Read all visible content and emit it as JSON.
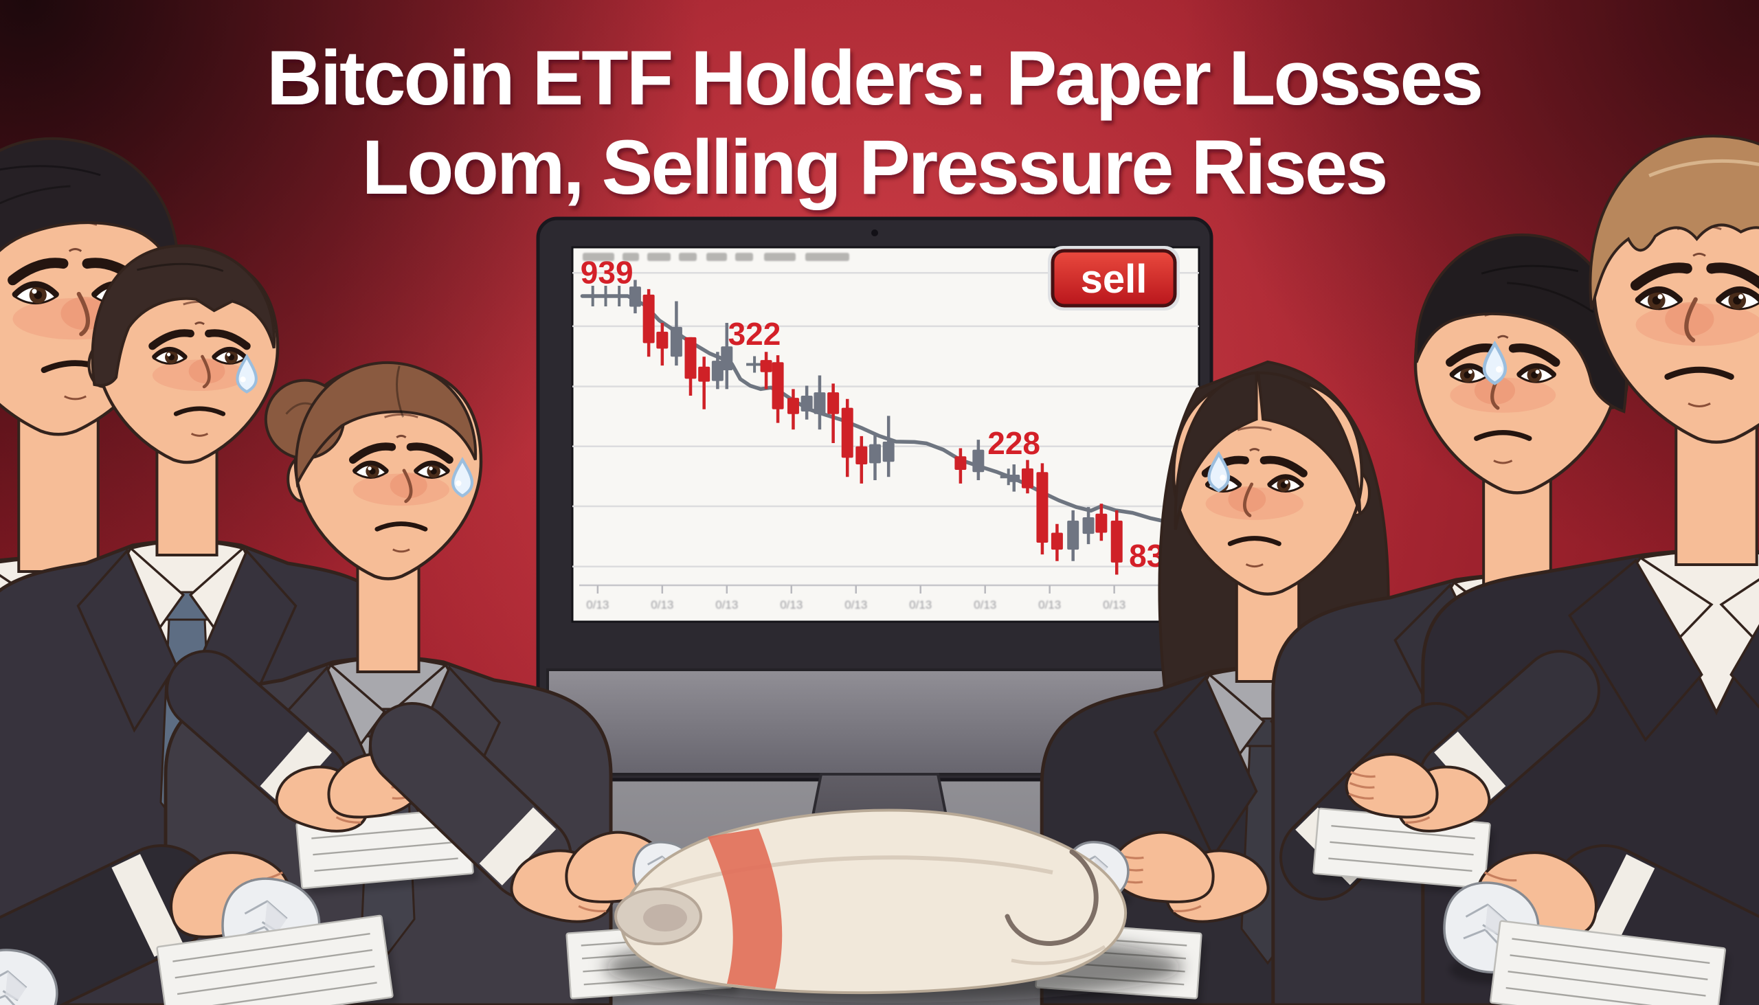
{
  "title": {
    "line1": "Bitcoin ETF Holders: Paper Losses",
    "line2": "Loom, Selling Pressure Rises"
  },
  "monitor": {
    "sell_button_label": "sell",
    "toolbar_item_count": 8
  },
  "chart_data": {
    "type": "candlestick",
    "title": "Declining price chart on monitor",
    "trend": "down",
    "legend": "none",
    "grid": "on",
    "price_labels": [
      {
        "text": "939",
        "x": 0.002,
        "y": 0.921
      },
      {
        "text": "322",
        "x": 0.242,
        "y": 0.753
      },
      {
        "text": "228",
        "x": 0.664,
        "y": 0.456
      },
      {
        "text": "836",
        "x": 0.894,
        "y": 0.15
      }
    ],
    "gridlines_v": [
      0.949,
      0.804,
      0.64,
      0.477,
      0.314,
      0.15
    ],
    "start_line": {
      "from": 0.005,
      "to": 0.079,
      "v": 0.886,
      "cross_ticks": [
        0.022,
        0.043,
        0.065
      ]
    },
    "extra_cross_ticks": [
      {
        "x": 0.285,
        "v": 0.7
      },
      {
        "x": 0.698,
        "v": 0.394
      }
    ],
    "candles": [
      {
        "x": 0.091,
        "c": "g",
        "wt": 0.93,
        "bt": 0.912,
        "bb": 0.857,
        "wb": 0.839
      },
      {
        "x": 0.113,
        "c": "r",
        "wt": 0.905,
        "bt": 0.89,
        "bb": 0.758,
        "wb": 0.721
      },
      {
        "x": 0.135,
        "c": "r",
        "wt": 0.813,
        "bt": 0.789,
        "bb": 0.743,
        "wb": 0.697
      },
      {
        "x": 0.158,
        "c": "g",
        "wt": 0.872,
        "bt": 0.802,
        "bb": 0.721,
        "wb": 0.697
      },
      {
        "x": 0.181,
        "c": "r",
        "wt": 0.774,
        "bt": 0.774,
        "bb": 0.661,
        "wb": 0.615
      },
      {
        "x": 0.203,
        "c": "r",
        "wt": 0.721,
        "bt": 0.694,
        "bb": 0.653,
        "wb": 0.578
      },
      {
        "x": 0.225,
        "c": "g",
        "wt": 0.734,
        "bt": 0.71,
        "bb": 0.655,
        "wb": 0.633
      },
      {
        "x": 0.24,
        "c": "g",
        "wt": 0.813,
        "bt": 0.749,
        "bb": 0.684,
        "wb": 0.633
      },
      {
        "x": 0.304,
        "c": "r",
        "wt": 0.734,
        "bt": 0.712,
        "bb": 0.679,
        "wb": 0.633
      },
      {
        "x": 0.323,
        "c": "r",
        "wt": 0.725,
        "bt": 0.706,
        "bb": 0.578,
        "wb": 0.541
      },
      {
        "x": 0.348,
        "c": "r",
        "wt": 0.633,
        "bt": 0.609,
        "bb": 0.565,
        "wb": 0.523
      },
      {
        "x": 0.37,
        "c": "g",
        "wt": 0.642,
        "bt": 0.615,
        "bb": 0.572,
        "wb": 0.55
      },
      {
        "x": 0.391,
        "c": "g",
        "wt": 0.67,
        "bt": 0.624,
        "bb": 0.565,
        "wb": 0.523
      },
      {
        "x": 0.413,
        "c": "r",
        "wt": 0.648,
        "bt": 0.624,
        "bb": 0.565,
        "wb": 0.486
      },
      {
        "x": 0.436,
        "c": "r",
        "wt": 0.606,
        "bt": 0.582,
        "bb": 0.446,
        "wb": 0.394
      },
      {
        "x": 0.459,
        "c": "r",
        "wt": 0.505,
        "bt": 0.477,
        "bb": 0.428,
        "wb": 0.376
      },
      {
        "x": 0.481,
        "c": "g",
        "wt": 0.514,
        "bt": 0.483,
        "bb": 0.431,
        "wb": 0.385
      },
      {
        "x": 0.503,
        "c": "g",
        "wt": 0.56,
        "bt": 0.49,
        "bb": 0.435,
        "wb": 0.394
      },
      {
        "x": 0.62,
        "c": "r",
        "wt": 0.472,
        "bt": 0.45,
        "bb": 0.413,
        "wb": 0.376
      },
      {
        "x": 0.649,
        "c": "g",
        "wt": 0.495,
        "bt": 0.468,
        "bb": 0.407,
        "wb": 0.385
      },
      {
        "x": 0.707,
        "c": "g",
        "wt": 0.428,
        "bt": 0.4,
        "bb": 0.38,
        "wb": 0.354
      },
      {
        "x": 0.729,
        "c": "r",
        "wt": 0.44,
        "bt": 0.417,
        "bb": 0.363,
        "wb": 0.349
      },
      {
        "x": 0.753,
        "c": "r",
        "wt": 0.431,
        "bt": 0.407,
        "bb": 0.215,
        "wb": 0.183
      },
      {
        "x": 0.777,
        "c": "r",
        "wt": 0.266,
        "bt": 0.242,
        "bb": 0.196,
        "wb": 0.165
      },
      {
        "x": 0.803,
        "c": "g",
        "wt": 0.303,
        "bt": 0.275,
        "bb": 0.196,
        "wb": 0.165
      },
      {
        "x": 0.828,
        "c": "g",
        "wt": 0.312,
        "bt": 0.284,
        "bb": 0.239,
        "wb": 0.211
      },
      {
        "x": 0.849,
        "c": "r",
        "wt": 0.321,
        "bt": 0.294,
        "bb": 0.242,
        "wb": 0.22
      },
      {
        "x": 0.874,
        "c": "r",
        "wt": 0.303,
        "bt": 0.275,
        "bb": 0.161,
        "wb": 0.128
      }
    ],
    "ma_line": [
      [
        0.005,
        0.886
      ],
      [
        0.079,
        0.886
      ],
      [
        0.107,
        0.861
      ],
      [
        0.13,
        0.82
      ],
      [
        0.148,
        0.8
      ],
      [
        0.168,
        0.775
      ],
      [
        0.19,
        0.752
      ],
      [
        0.212,
        0.73
      ],
      [
        0.232,
        0.716
      ],
      [
        0.248,
        0.702
      ],
      [
        0.262,
        0.66
      ],
      [
        0.278,
        0.642
      ],
      [
        0.295,
        0.633
      ],
      [
        0.312,
        0.637
      ],
      [
        0.33,
        0.622
      ],
      [
        0.35,
        0.6
      ],
      [
        0.375,
        0.577
      ],
      [
        0.4,
        0.563
      ],
      [
        0.427,
        0.549
      ],
      [
        0.458,
        0.528
      ],
      [
        0.487,
        0.506
      ],
      [
        0.515,
        0.49
      ],
      [
        0.545,
        0.489
      ],
      [
        0.565,
        0.485
      ],
      [
        0.592,
        0.468
      ],
      [
        0.62,
        0.44
      ],
      [
        0.648,
        0.424
      ],
      [
        0.678,
        0.408
      ],
      [
        0.7,
        0.394
      ],
      [
        0.722,
        0.378
      ],
      [
        0.75,
        0.354
      ],
      [
        0.78,
        0.33
      ],
      [
        0.808,
        0.312
      ],
      [
        0.832,
        0.302
      ],
      [
        0.85,
        0.315
      ],
      [
        0.872,
        0.303
      ],
      [
        0.9,
        0.296
      ],
      [
        0.928,
        0.282
      ],
      [
        0.955,
        0.272
      ],
      [
        0.972,
        0.278
      ]
    ],
    "x_ticks": [
      {
        "x": 0.03,
        "label": "0/13"
      },
      {
        "x": 0.135,
        "label": "0/13"
      },
      {
        "x": 0.24,
        "label": "0/13"
      },
      {
        "x": 0.345,
        "label": "0/13"
      },
      {
        "x": 0.45,
        "label": "0/13"
      },
      {
        "x": 0.555,
        "label": "0/13"
      },
      {
        "x": 0.66,
        "label": "0/13"
      },
      {
        "x": 0.765,
        "label": "0/13"
      },
      {
        "x": 0.87,
        "label": "0/13"
      },
      {
        "x": 0.975,
        "label": "0/13"
      }
    ]
  },
  "colors": {
    "background_red": "#a82631",
    "accent_label_red": "#d42028",
    "candle_red": "#cf2127",
    "candle_gray": "#6f7582",
    "sell_button_red": "#c11a20",
    "screen_white": "#f8f7f4"
  },
  "scene": {
    "people_count": 6,
    "sweat_drop_count": 4,
    "crumpled_paper_count": 6,
    "document_count": 6,
    "objects": [
      "monitor",
      "conference-table",
      "documents",
      "crumpled-papers",
      "towel-with-red-stripe"
    ]
  }
}
